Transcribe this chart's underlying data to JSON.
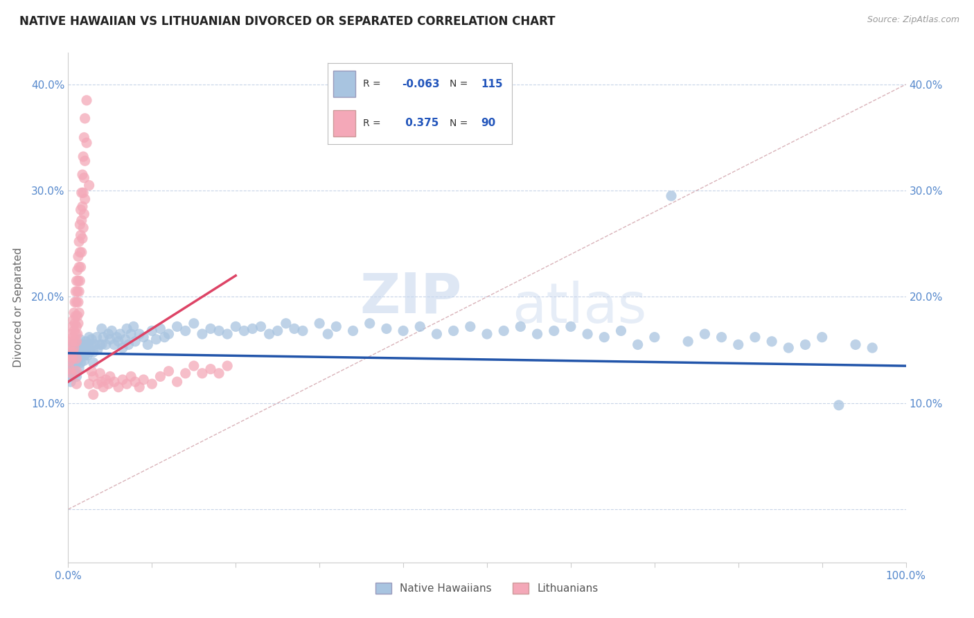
{
  "title": "NATIVE HAWAIIAN VS LITHUANIAN DIVORCED OR SEPARATED CORRELATION CHART",
  "source": "Source: ZipAtlas.com",
  "ylabel": "Divorced or Separated",
  "watermark": "ZIPatlas",
  "xlim": [
    0.0,
    1.0
  ],
  "ylim": [
    -0.05,
    0.43
  ],
  "xticks": [
    0.0,
    0.1,
    0.2,
    0.3,
    0.4,
    0.5,
    0.6,
    0.7,
    0.8,
    0.9,
    1.0
  ],
  "xtick_labels": [
    "0.0%",
    "",
    "",
    "",
    "",
    "",
    "",
    "",
    "",
    "",
    "100.0%"
  ],
  "yticks": [
    0.0,
    0.1,
    0.2,
    0.3,
    0.4
  ],
  "ytick_labels": [
    "",
    "10.0%",
    "20.0%",
    "30.0%",
    "40.0%"
  ],
  "blue_color": "#a8c4e0",
  "pink_color": "#f4a8b8",
  "blue_line_color": "#2255aa",
  "pink_line_color": "#dd4466",
  "diag_line_color": "#d0a0a8",
  "grid_color": "#c8d4e8",
  "background_color": "#ffffff",
  "blue_scatter": [
    [
      0.002,
      0.145
    ],
    [
      0.002,
      0.13
    ],
    [
      0.003,
      0.135
    ],
    [
      0.003,
      0.12
    ],
    [
      0.004,
      0.14
    ],
    [
      0.004,
      0.125
    ],
    [
      0.005,
      0.148
    ],
    [
      0.005,
      0.132
    ],
    [
      0.006,
      0.155
    ],
    [
      0.006,
      0.138
    ],
    [
      0.007,
      0.145
    ],
    [
      0.007,
      0.128
    ],
    [
      0.008,
      0.152
    ],
    [
      0.008,
      0.135
    ],
    [
      0.009,
      0.143
    ],
    [
      0.009,
      0.128
    ],
    [
      0.01,
      0.15
    ],
    [
      0.01,
      0.138
    ],
    [
      0.01,
      0.125
    ],
    [
      0.011,
      0.147
    ],
    [
      0.012,
      0.155
    ],
    [
      0.012,
      0.14
    ],
    [
      0.013,
      0.148
    ],
    [
      0.013,
      0.133
    ],
    [
      0.014,
      0.16
    ],
    [
      0.015,
      0.152
    ],
    [
      0.015,
      0.138
    ],
    [
      0.016,
      0.145
    ],
    [
      0.017,
      0.155
    ],
    [
      0.018,
      0.148
    ],
    [
      0.019,
      0.14
    ],
    [
      0.02,
      0.155
    ],
    [
      0.02,
      0.145
    ],
    [
      0.021,
      0.158
    ],
    [
      0.022,
      0.15
    ],
    [
      0.023,
      0.145
    ],
    [
      0.024,
      0.155
    ],
    [
      0.025,
      0.162
    ],
    [
      0.026,
      0.148
    ],
    [
      0.027,
      0.155
    ],
    [
      0.028,
      0.16
    ],
    [
      0.03,
      0.148
    ],
    [
      0.03,
      0.138
    ],
    [
      0.032,
      0.155
    ],
    [
      0.034,
      0.162
    ],
    [
      0.035,
      0.15
    ],
    [
      0.038,
      0.155
    ],
    [
      0.04,
      0.17
    ],
    [
      0.04,
      0.155
    ],
    [
      0.042,
      0.162
    ],
    [
      0.045,
      0.155
    ],
    [
      0.048,
      0.165
    ],
    [
      0.05,
      0.16
    ],
    [
      0.052,
      0.168
    ],
    [
      0.055,
      0.155
    ],
    [
      0.058,
      0.162
    ],
    [
      0.06,
      0.158
    ],
    [
      0.062,
      0.165
    ],
    [
      0.065,
      0.152
    ],
    [
      0.068,
      0.16
    ],
    [
      0.07,
      0.17
    ],
    [
      0.072,
      0.155
    ],
    [
      0.075,
      0.165
    ],
    [
      0.078,
      0.172
    ],
    [
      0.08,
      0.158
    ],
    [
      0.085,
      0.165
    ],
    [
      0.09,
      0.162
    ],
    [
      0.095,
      0.155
    ],
    [
      0.1,
      0.168
    ],
    [
      0.105,
      0.16
    ],
    [
      0.11,
      0.17
    ],
    [
      0.115,
      0.162
    ],
    [
      0.12,
      0.165
    ],
    [
      0.13,
      0.172
    ],
    [
      0.14,
      0.168
    ],
    [
      0.15,
      0.175
    ],
    [
      0.16,
      0.165
    ],
    [
      0.17,
      0.17
    ],
    [
      0.18,
      0.168
    ],
    [
      0.19,
      0.165
    ],
    [
      0.2,
      0.172
    ],
    [
      0.21,
      0.168
    ],
    [
      0.22,
      0.17
    ],
    [
      0.23,
      0.172
    ],
    [
      0.24,
      0.165
    ],
    [
      0.25,
      0.168
    ],
    [
      0.26,
      0.175
    ],
    [
      0.27,
      0.17
    ],
    [
      0.28,
      0.168
    ],
    [
      0.3,
      0.175
    ],
    [
      0.31,
      0.165
    ],
    [
      0.32,
      0.172
    ],
    [
      0.34,
      0.168
    ],
    [
      0.36,
      0.175
    ],
    [
      0.38,
      0.17
    ],
    [
      0.4,
      0.168
    ],
    [
      0.42,
      0.172
    ],
    [
      0.44,
      0.165
    ],
    [
      0.46,
      0.168
    ],
    [
      0.48,
      0.172
    ],
    [
      0.5,
      0.165
    ],
    [
      0.52,
      0.168
    ],
    [
      0.54,
      0.172
    ],
    [
      0.56,
      0.165
    ],
    [
      0.58,
      0.168
    ],
    [
      0.6,
      0.172
    ],
    [
      0.62,
      0.165
    ],
    [
      0.64,
      0.162
    ],
    [
      0.66,
      0.168
    ],
    [
      0.68,
      0.155
    ],
    [
      0.7,
      0.162
    ],
    [
      0.72,
      0.295
    ],
    [
      0.74,
      0.158
    ],
    [
      0.76,
      0.165
    ],
    [
      0.78,
      0.162
    ],
    [
      0.8,
      0.155
    ],
    [
      0.82,
      0.162
    ],
    [
      0.84,
      0.158
    ],
    [
      0.86,
      0.152
    ],
    [
      0.88,
      0.155
    ],
    [
      0.9,
      0.162
    ],
    [
      0.92,
      0.098
    ],
    [
      0.94,
      0.155
    ],
    [
      0.96,
      0.152
    ]
  ],
  "pink_scatter": [
    [
      0.002,
      0.145
    ],
    [
      0.002,
      0.132
    ],
    [
      0.003,
      0.155
    ],
    [
      0.003,
      0.14
    ],
    [
      0.004,
      0.165
    ],
    [
      0.004,
      0.148
    ],
    [
      0.004,
      0.128
    ],
    [
      0.005,
      0.172
    ],
    [
      0.005,
      0.158
    ],
    [
      0.005,
      0.142
    ],
    [
      0.006,
      0.178
    ],
    [
      0.006,
      0.162
    ],
    [
      0.006,
      0.148
    ],
    [
      0.007,
      0.185
    ],
    [
      0.007,
      0.168
    ],
    [
      0.007,
      0.152
    ],
    [
      0.008,
      0.195
    ],
    [
      0.008,
      0.175
    ],
    [
      0.008,
      0.158
    ],
    [
      0.009,
      0.205
    ],
    [
      0.009,
      0.182
    ],
    [
      0.009,
      0.165
    ],
    [
      0.01,
      0.215
    ],
    [
      0.01,
      0.195
    ],
    [
      0.01,
      0.172
    ],
    [
      0.01,
      0.158
    ],
    [
      0.01,
      0.142
    ],
    [
      0.01,
      0.13
    ],
    [
      0.01,
      0.118
    ],
    [
      0.011,
      0.225
    ],
    [
      0.011,
      0.205
    ],
    [
      0.011,
      0.182
    ],
    [
      0.011,
      0.165
    ],
    [
      0.012,
      0.238
    ],
    [
      0.012,
      0.215
    ],
    [
      0.012,
      0.195
    ],
    [
      0.012,
      0.175
    ],
    [
      0.013,
      0.252
    ],
    [
      0.013,
      0.228
    ],
    [
      0.013,
      0.205
    ],
    [
      0.013,
      0.185
    ],
    [
      0.014,
      0.268
    ],
    [
      0.014,
      0.242
    ],
    [
      0.014,
      0.215
    ],
    [
      0.015,
      0.282
    ],
    [
      0.015,
      0.258
    ],
    [
      0.015,
      0.228
    ],
    [
      0.016,
      0.298
    ],
    [
      0.016,
      0.272
    ],
    [
      0.016,
      0.242
    ],
    [
      0.017,
      0.315
    ],
    [
      0.017,
      0.285
    ],
    [
      0.017,
      0.255
    ],
    [
      0.018,
      0.332
    ],
    [
      0.018,
      0.298
    ],
    [
      0.018,
      0.265
    ],
    [
      0.019,
      0.35
    ],
    [
      0.019,
      0.312
    ],
    [
      0.019,
      0.278
    ],
    [
      0.02,
      0.368
    ],
    [
      0.02,
      0.328
    ],
    [
      0.02,
      0.292
    ],
    [
      0.022,
      0.385
    ],
    [
      0.022,
      0.345
    ],
    [
      0.025,
      0.305
    ],
    [
      0.025,
      0.118
    ],
    [
      0.028,
      0.13
    ],
    [
      0.03,
      0.125
    ],
    [
      0.03,
      0.108
    ],
    [
      0.035,
      0.118
    ],
    [
      0.038,
      0.128
    ],
    [
      0.04,
      0.12
    ],
    [
      0.042,
      0.115
    ],
    [
      0.045,
      0.122
    ],
    [
      0.048,
      0.118
    ],
    [
      0.05,
      0.125
    ],
    [
      0.055,
      0.12
    ],
    [
      0.06,
      0.115
    ],
    [
      0.065,
      0.122
    ],
    [
      0.07,
      0.118
    ],
    [
      0.075,
      0.125
    ],
    [
      0.08,
      0.12
    ],
    [
      0.085,
      0.115
    ],
    [
      0.09,
      0.122
    ],
    [
      0.1,
      0.118
    ],
    [
      0.11,
      0.125
    ],
    [
      0.12,
      0.13
    ],
    [
      0.13,
      0.12
    ],
    [
      0.14,
      0.128
    ],
    [
      0.15,
      0.135
    ],
    [
      0.16,
      0.128
    ],
    [
      0.17,
      0.132
    ],
    [
      0.18,
      0.128
    ],
    [
      0.19,
      0.135
    ]
  ]
}
